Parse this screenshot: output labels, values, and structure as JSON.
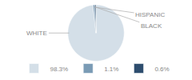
{
  "chart_data": {
    "type": "pie",
    "categories": [
      "WHITE",
      "HISPANIC",
      "BLACK"
    ],
    "values": [
      98.3,
      1.1,
      0.6
    ],
    "value_labels": [
      "98.3%",
      "1.1%",
      "0.6%"
    ],
    "colors": [
      "#d4dfe8",
      "#7a9bb5",
      "#2d4d6e"
    ],
    "legend": "bottom"
  }
}
